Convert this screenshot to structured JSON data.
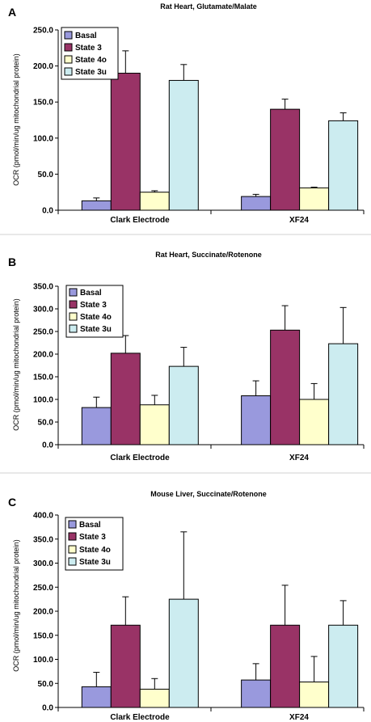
{
  "chart_data": [
    {
      "type": "bar",
      "panel_label": "A",
      "title": "Rat Heart, Glutamate/Malate",
      "ylabel": "OCR (pmol/min/ug mitochondrial protein)",
      "xlabel": "",
      "ylim": [
        0,
        250
      ],
      "yticks": [
        "0.0",
        "50.0",
        "100.0",
        "150.0",
        "200.0",
        "250.0"
      ],
      "ytick_values": [
        0,
        50,
        100,
        150,
        200,
        250
      ],
      "categories": [
        "Clark Electrode",
        "XF24"
      ],
      "legend_position": "top-left",
      "grid": false,
      "series": [
        {
          "name": "Basal",
          "color": "#9999dd",
          "values": [
            13,
            19
          ],
          "errors": [
            4,
            3
          ]
        },
        {
          "name": "State 3",
          "color": "#993366",
          "values": [
            190,
            140
          ],
          "errors": [
            31,
            14
          ]
        },
        {
          "name": "State 4o",
          "color": "#ffffcc",
          "values": [
            25,
            31
          ],
          "errors": [
            2,
            1
          ]
        },
        {
          "name": "State 3u",
          "color": "#ccecf0",
          "values": [
            180,
            124
          ],
          "errors": [
            22,
            11
          ]
        }
      ]
    },
    {
      "type": "bar",
      "panel_label": "B",
      "title": "Rat Heart, Succinate/Rotenone",
      "ylabel": "OCR (pmol/min/ug mitochondrial protein)",
      "xlabel": "",
      "ylim": [
        0,
        350
      ],
      "yticks": [
        "0.0",
        "50.0",
        "100.0",
        "150.0",
        "200.0",
        "250.0",
        "300.0",
        "350.0"
      ],
      "ytick_values": [
        0,
        50,
        100,
        150,
        200,
        250,
        300,
        350
      ],
      "categories": [
        "Clark Electrode",
        "XF24"
      ],
      "legend_position": "top-left",
      "grid": false,
      "series": [
        {
          "name": "Basal",
          "color": "#9999dd",
          "values": [
            82,
            108
          ],
          "errors": [
            23,
            33
          ]
        },
        {
          "name": "State 3",
          "color": "#993366",
          "values": [
            202,
            253
          ],
          "errors": [
            39,
            54
          ]
        },
        {
          "name": "State 4o",
          "color": "#ffffcc",
          "values": [
            88,
            100
          ],
          "errors": [
            21,
            35
          ]
        },
        {
          "name": "State 3u",
          "color": "#ccecf0",
          "values": [
            173,
            223
          ],
          "errors": [
            42,
            80
          ]
        }
      ]
    },
    {
      "type": "bar",
      "panel_label": "C",
      "title": "Mouse Liver, Succinate/Rotenone",
      "ylabel": "OCR (pmol/min/ug mitochondrial protein)",
      "xlabel": "",
      "ylim": [
        0,
        400
      ],
      "yticks": [
        "0.0",
        "50.0",
        "100.0",
        "150.0",
        "200.0",
        "250.0",
        "300.0",
        "350.0",
        "400.0"
      ],
      "ytick_values": [
        0,
        50,
        100,
        150,
        200,
        250,
        300,
        350,
        400
      ],
      "categories": [
        "Clark Electrode",
        "XF24"
      ],
      "legend_position": "top-left",
      "grid": false,
      "series": [
        {
          "name": "Basal",
          "color": "#9999dd",
          "values": [
            43,
            57
          ],
          "errors": [
            30,
            34
          ]
        },
        {
          "name": "State 3",
          "color": "#993366",
          "values": [
            171,
            171
          ],
          "errors": [
            59,
            83
          ]
        },
        {
          "name": "State 4o",
          "color": "#ffffcc",
          "values": [
            38,
            53
          ],
          "errors": [
            22,
            53
          ]
        },
        {
          "name": "State 3u",
          "color": "#ccecf0",
          "values": [
            225,
            171
          ],
          "errors": [
            140,
            51
          ]
        }
      ]
    }
  ]
}
